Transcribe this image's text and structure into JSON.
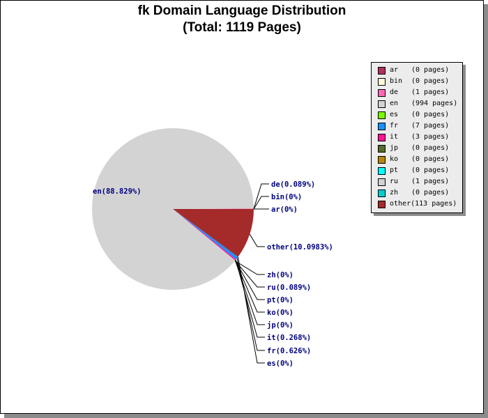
{
  "chart_data": {
    "type": "pie",
    "title": "fk Domain Language Distribution",
    "subtitle": "(Total: 1119 Pages)",
    "slices": [
      {
        "code": "ar",
        "pages": 0,
        "legend_count": "(0 pages)",
        "label": "ar(0%)",
        "color": "#b03060"
      },
      {
        "code": "bin",
        "pages": 0,
        "legend_count": "(0 pages)",
        "label": "bin(0%)",
        "color": "#fff8dc"
      },
      {
        "code": "de",
        "pages": 1,
        "legend_count": "(1 pages)",
        "label": "de(0.089%)",
        "color": "#ff69b4"
      },
      {
        "code": "en",
        "pages": 994,
        "legend_count": "(994 pages)",
        "label": "en(88.829%)",
        "color": "#d3d3d3"
      },
      {
        "code": "es",
        "pages": 0,
        "legend_count": "(0 pages)",
        "label": "es(0%)",
        "color": "#7cfc00"
      },
      {
        "code": "fr",
        "pages": 7,
        "legend_count": "(7 pages)",
        "label": "fr(0.626%)",
        "color": "#1e90ff"
      },
      {
        "code": "it",
        "pages": 3,
        "legend_count": "(3 pages)",
        "label": "it(0.268%)",
        "color": "#ff1493"
      },
      {
        "code": "jp",
        "pages": 0,
        "legend_count": "(0 pages)",
        "label": "jp(0%)",
        "color": "#556b2f"
      },
      {
        "code": "ko",
        "pages": 0,
        "legend_count": "(0 pages)",
        "label": "ko(0%)",
        "color": "#b8860b"
      },
      {
        "code": "pt",
        "pages": 0,
        "legend_count": "(0 pages)",
        "label": "pt(0%)",
        "color": "#00ffff"
      },
      {
        "code": "ru",
        "pages": 1,
        "legend_count": "(1 pages)",
        "label": "ru(0.089%)",
        "color": "#d3d3d3"
      },
      {
        "code": "zh",
        "pages": 0,
        "legend_count": "(0 pages)",
        "label": "zh(0%)",
        "color": "#00ced1"
      },
      {
        "code": "other",
        "pages": 113,
        "legend_count": "(113 pages)",
        "label": "other(10.0983%)",
        "color": "#a52a2a"
      }
    ],
    "legend_placement": "right"
  }
}
